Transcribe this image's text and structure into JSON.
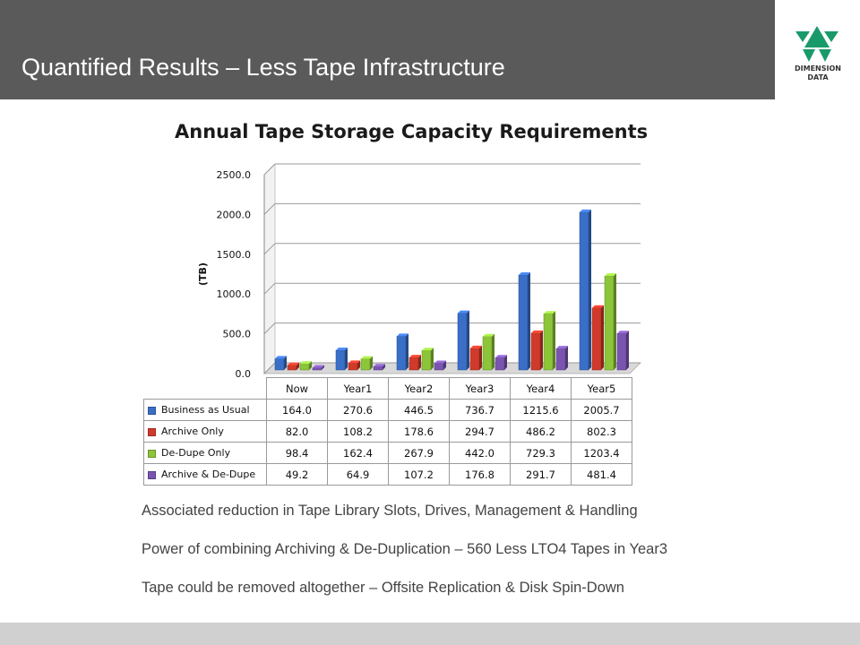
{
  "slide": {
    "title": "Quantified Results – Less Tape Infrastructure",
    "logo_line1": "DIMENSION",
    "logo_line2": "DATA",
    "bullets": [
      "Associated reduction in Tape Library Slots, Drives, Management & Handling",
      "Power of combining Archiving & De-Duplication – 560 Less LTO4 Tapes in Year3",
      "Tape could be removed altogether –  Offsite Replication & Disk Spin-Down"
    ],
    "colors": {
      "header": "#5a5a5a",
      "footer": "#d0d0d0",
      "logo_green": "#1a9a6a"
    }
  },
  "chart_data": {
    "type": "bar",
    "title": "Annual Tape Storage Capacity Requirements",
    "ylabel": "(TB)",
    "xlabel": "",
    "ylim": [
      0,
      2500
    ],
    "yticks": [
      "0.0",
      "500.0",
      "1000.0",
      "1500.0",
      "2000.0",
      "2500.0"
    ],
    "grid": true,
    "categories": [
      "Now",
      "Year1",
      "Year2",
      "Year3",
      "Year4",
      "Year5"
    ],
    "series": [
      {
        "name": "Business as Usual",
        "color": "#3a6fc8",
        "values": [
          164.0,
          270.6,
          446.5,
          736.7,
          1215.6,
          2005.7
        ],
        "labels": [
          "164.0",
          "270.6",
          "446.5",
          "736.7",
          "1215.6",
          "2005.7"
        ]
      },
      {
        "name": "Archive Only",
        "color": "#d03a2a",
        "values": [
          82.0,
          108.2,
          178.6,
          294.7,
          486.2,
          802.3
        ],
        "labels": [
          "82.0",
          "108.2",
          "178.6",
          "294.7",
          "486.2",
          "802.3"
        ]
      },
      {
        "name": "De-Dupe Only",
        "color": "#8cc43a",
        "values": [
          98.4,
          162.4,
          267.9,
          442.0,
          729.3,
          1203.4
        ],
        "labels": [
          "98.4",
          "162.4",
          "267.9",
          "442.0",
          "729.3",
          "1203.4"
        ]
      },
      {
        "name": "Archive & De-Dupe",
        "color": "#7a55b0",
        "values": [
          49.2,
          64.9,
          107.2,
          176.8,
          291.7,
          481.4
        ],
        "labels": [
          "49.2",
          "64.9",
          "107.2",
          "176.8",
          "291.7",
          "481.4"
        ]
      }
    ]
  }
}
